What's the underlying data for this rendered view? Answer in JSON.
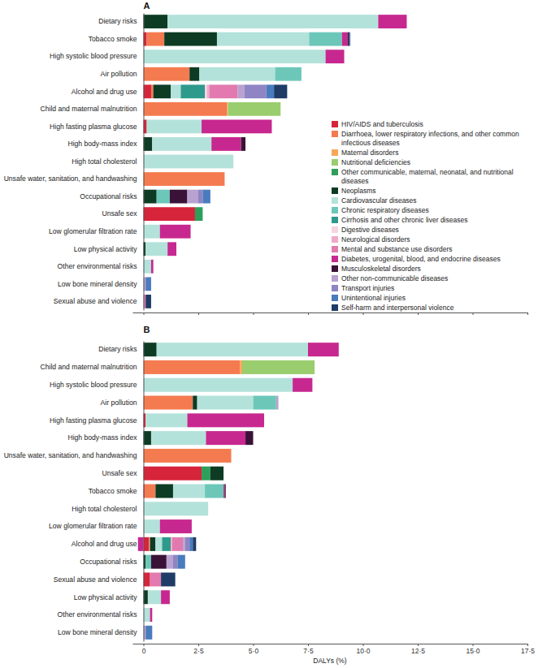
{
  "chart_data": [
    {
      "type": "bar",
      "title": "A",
      "orientation": "horizontal",
      "stacked": true,
      "legend": "right",
      "tick_labels": "y",
      "categories": [
        "Dietary risks",
        "Tobacco smoke",
        "High systolic blood pressure",
        "Air pollution",
        "Alcohol and drug use",
        "Child and maternal malnutrition",
        "High fasting plasma glucose",
        "High body-mass index",
        "High total cholesterol",
        "Unsafe water, sanitation, and handwashing",
        "Occupational risks",
        "Unsafe sex",
        "Low glomerular filtration rate",
        "Low physical activity",
        "Other environmental risks",
        "Low bone mineral density",
        "Sexual abuse and violence"
      ],
      "xlim": [
        -0.5,
        17.5
      ],
      "xticks": [
        0,
        2.5,
        5,
        7.5,
        10,
        12.5,
        15,
        17.5
      ],
      "series": [
        {
          "name": "HIV/AIDS and tuberculosis",
          "color": "#d6243b",
          "values": [
            0,
            0.15,
            0,
            0,
            0.35,
            0,
            0.15,
            0,
            0,
            0,
            0,
            2.35,
            0,
            0,
            0,
            0,
            0
          ]
        },
        {
          "name": "Diarrhoea, lower respiratory infections, and other common infectious diseases",
          "color": "#f47b50",
          "values": [
            0,
            0.8,
            0,
            2.1,
            0.1,
            3.8,
            0,
            0,
            0,
            3.7,
            0,
            0,
            0,
            0,
            0,
            0,
            0
          ]
        },
        {
          "name": "Maternal disorders",
          "color": "#f9a65a",
          "values": [
            0,
            0,
            0,
            0,
            0,
            0.05,
            0,
            0,
            0,
            0,
            0,
            0,
            0,
            0,
            0,
            0,
            0
          ]
        },
        {
          "name": "Nutritional deficiencies",
          "color": "#9acd6e",
          "values": [
            0,
            0,
            0,
            0,
            0,
            2.4,
            0,
            0,
            0,
            0,
            0,
            0,
            0,
            0,
            0,
            0,
            0
          ]
        },
        {
          "name": "Other communicable, maternal, neonatal, and nutritional diseases",
          "color": "#2e9e5b",
          "values": [
            0,
            0,
            0,
            0,
            0,
            0,
            0,
            0,
            0,
            0,
            0,
            0.35,
            0,
            0,
            0,
            0,
            0
          ]
        },
        {
          "name": "Neoplasms",
          "color": "#0e3b24",
          "values": [
            1.1,
            2.4,
            0,
            0.45,
            0.8,
            0,
            0,
            0.4,
            0,
            0,
            0.6,
            0,
            0,
            0.1,
            0,
            0,
            0
          ]
        },
        {
          "name": "Cardiovascular diseases",
          "color": "#b3e2da",
          "values": [
            9.6,
            4.2,
            8.3,
            3.45,
            0.45,
            0,
            2.5,
            2.7,
            4.1,
            0,
            0,
            0,
            0.75,
            1.0,
            0.35,
            0,
            0
          ]
        },
        {
          "name": "Chronic respiratory diseases",
          "color": "#6cc7b9",
          "values": [
            0,
            1.5,
            0,
            1.2,
            0,
            0,
            0,
            0,
            0,
            0,
            0.6,
            0,
            0,
            0,
            0,
            0,
            0
          ]
        },
        {
          "name": "Cirrhosis and other chronic liver diseases",
          "color": "#2e9a8c",
          "values": [
            0,
            0,
            0,
            0,
            1.1,
            0,
            0,
            0,
            0,
            0,
            0,
            0,
            0,
            0,
            0,
            0,
            0
          ]
        },
        {
          "name": "Digestive diseases",
          "color": "#f7d4e3",
          "values": [
            0,
            0,
            0,
            0,
            0.1,
            0,
            0,
            0,
            0,
            0,
            0,
            0,
            0,
            0,
            0,
            0,
            0
          ]
        },
        {
          "name": "Neurological disorders",
          "color": "#f0a9c8",
          "values": [
            0,
            0,
            0,
            0,
            0.1,
            0,
            0,
            0,
            0,
            0,
            0,
            0,
            0,
            0,
            0,
            0,
            0
          ]
        },
        {
          "name": "Mental and substance use disorders",
          "color": "#e27ab0",
          "values": [
            0,
            0,
            0,
            0,
            1.3,
            0,
            0,
            0,
            0,
            0,
            0,
            0,
            0,
            0,
            0,
            0,
            0.1
          ]
        },
        {
          "name": "Diabetes, urogenital, blood, and endocrine diseases",
          "color": "#c7288f",
          "values": [
            1.3,
            0.25,
            0.85,
            0,
            0,
            0,
            3.2,
            1.35,
            0,
            0,
            0,
            0,
            1.4,
            0.4,
            0.1,
            0,
            0
          ]
        },
        {
          "name": "Musculoskeletal disorders",
          "color": "#3b1237",
          "values": [
            0,
            0.08,
            0,
            0,
            0,
            0,
            0,
            0.2,
            0,
            0,
            0.8,
            0,
            0,
            0,
            0,
            0,
            0
          ]
        },
        {
          "name": "Other non-communicable diseases",
          "color": "#b9a2cf",
          "values": [
            0,
            0,
            0,
            0,
            0.3,
            0,
            0,
            0,
            0,
            0,
            0.5,
            0,
            0,
            0,
            0,
            0.1,
            0
          ]
        },
        {
          "name": "Transport injuries",
          "color": "#8f84c4",
          "values": [
            0,
            0,
            0,
            0,
            1.0,
            0,
            0,
            0,
            0,
            0,
            0.2,
            0,
            0,
            0,
            0,
            0,
            0
          ]
        },
        {
          "name": "Unintentional injuries",
          "color": "#4a7bbd",
          "values": [
            0,
            0.05,
            0,
            0,
            0.35,
            0,
            0,
            0,
            0,
            0,
            0.35,
            0,
            0,
            0,
            0,
            0.25,
            0
          ]
        },
        {
          "name": "Self-harm and interpersonal violence",
          "color": "#1f3c66",
          "values": [
            0,
            0,
            0,
            0,
            0.6,
            0,
            0,
            0,
            0,
            0,
            0,
            0,
            0,
            0,
            0,
            0,
            0.25
          ]
        }
      ]
    },
    {
      "type": "bar",
      "title": "B",
      "orientation": "horizontal",
      "stacked": true,
      "x_label": "DALYs (%)",
      "categories": [
        "Dietary risks",
        "Child and maternal malnutrition",
        "High systolic blood pressure",
        "Air pollution",
        "High fasting plasma glucose",
        "High body-mass index",
        "Unsafe water, sanitation, and handwashing",
        "Unsafe sex",
        "Tobacco smoke",
        "High total cholesterol",
        "Low glomerular filtration rate",
        "Alcohol and drug use",
        "Occupational risks",
        "Sexual abuse and violence",
        "Low physical activity",
        "Other environmental risks",
        "Low bone mineral density"
      ],
      "xlim": [
        -0.5,
        17.5
      ],
      "xticks": [
        0,
        {
          "value": 2.5,
          "label": "2·5"
        },
        {
          "value": 5,
          "label": "5·0"
        },
        {
          "value": 7.5,
          "label": "7·5"
        },
        {
          "value": 10,
          "label": "10·0"
        },
        {
          "value": 12.5,
          "label": "12·5"
        },
        {
          "value": 15,
          "label": "15·0"
        },
        {
          "value": 17.5,
          "label": "17·5"
        }
      ],
      "series": [
        {
          "color": "#d6243b",
          "values": [
            0,
            0,
            0,
            0,
            0.1,
            0,
            0,
            2.65,
            0.05,
            0,
            0,
            0.25,
            0,
            0.3,
            0,
            0,
            0
          ]
        },
        {
          "color": "#f47b50",
          "values": [
            0,
            4.4,
            0,
            2.25,
            0,
            0,
            4.0,
            0,
            0.5,
            0,
            0,
            0.05,
            0,
            0,
            0,
            0,
            0
          ]
        },
        {
          "color": "#f9a65a",
          "values": [
            0,
            0.1,
            0,
            0,
            0,
            0,
            0,
            0,
            0,
            0,
            0,
            0,
            0,
            0,
            0,
            0,
            0
          ]
        },
        {
          "color": "#9acd6e",
          "values": [
            0,
            3.3,
            0,
            0,
            0,
            0,
            0,
            0,
            0,
            0,
            0,
            0,
            0,
            0,
            0,
            0,
            0
          ]
        },
        {
          "color": "#2e9e5b",
          "values": [
            0,
            0,
            0,
            0,
            0,
            0,
            0,
            0.4,
            0,
            0,
            0,
            0,
            0,
            0,
            0,
            0,
            0
          ]
        },
        {
          "color": "#0e3b24",
          "values": [
            0.6,
            0,
            0,
            0.2,
            0,
            0.35,
            0,
            0.6,
            0.8,
            0,
            0,
            0.25,
            0.1,
            0,
            0.2,
            0,
            0
          ]
        },
        {
          "color": "#b3e2da",
          "values": [
            6.9,
            0,
            6.8,
            2.55,
            1.9,
            2.5,
            0,
            0,
            1.45,
            2.95,
            0.75,
            0.3,
            0,
            0,
            0.6,
            0.3,
            0
          ]
        },
        {
          "color": "#6cc7b9",
          "values": [
            0,
            0,
            0,
            1.05,
            0,
            0,
            0,
            0,
            0.85,
            0,
            0,
            0,
            0.25,
            0,
            0,
            0,
            0
          ]
        },
        {
          "color": "#2e9a8c",
          "values": [
            0,
            0,
            0,
            0,
            0,
            0,
            0,
            0,
            0,
            0,
            0,
            0.4,
            0,
            0,
            0,
            0,
            0
          ]
        },
        {
          "color": "#f7d4e3",
          "values": [
            0,
            0,
            0,
            0,
            0,
            0,
            0,
            0,
            0,
            0,
            0,
            0,
            0,
            0,
            0,
            0,
            0
          ]
        },
        {
          "color": "#f0a9c8",
          "values": [
            0,
            0,
            0,
            0,
            0,
            0,
            0,
            0,
            0,
            0,
            0,
            0.05,
            0,
            0,
            0,
            0,
            0
          ]
        },
        {
          "color": "#e27ab0",
          "values": [
            0,
            0,
            0,
            0,
            0,
            0,
            0,
            0,
            0,
            0,
            0,
            0.5,
            0,
            0.5,
            0,
            0,
            0
          ]
        },
        {
          "color": "#c7288f",
          "values": [
            1.4,
            0,
            0.9,
            0,
            3.5,
            1.8,
            0,
            0,
            0.05,
            0,
            1.45,
            -0.25,
            0,
            0,
            0.4,
            0.1,
            0
          ]
        },
        {
          "color": "#3b1237",
          "values": [
            0,
            0,
            0,
            0,
            0,
            0.35,
            0,
            0,
            0.05,
            0,
            0,
            0,
            0.7,
            0,
            0,
            0,
            0
          ]
        },
        {
          "color": "#b9a2cf",
          "values": [
            0,
            0,
            0,
            0.1,
            0,
            0,
            0,
            0,
            0,
            0,
            0,
            0.1,
            0.3,
            0,
            0,
            0,
            0.1
          ]
        },
        {
          "color": "#8f84c4",
          "values": [
            0,
            0,
            0,
            0,
            0,
            0,
            0,
            0,
            0,
            0,
            0,
            0.2,
            0.2,
            0,
            0,
            0,
            0
          ]
        },
        {
          "color": "#4a7bbd",
          "values": [
            0,
            0,
            0,
            0,
            0,
            0,
            0,
            0,
            0,
            0,
            0,
            0.15,
            0.35,
            0,
            0,
            0,
            0.3
          ]
        },
        {
          "color": "#1f3c66",
          "values": [
            0,
            0,
            0,
            0,
            0,
            0,
            0,
            0,
            0,
            0,
            0,
            0.15,
            0,
            0.65,
            0,
            0,
            0
          ]
        }
      ]
    }
  ]
}
